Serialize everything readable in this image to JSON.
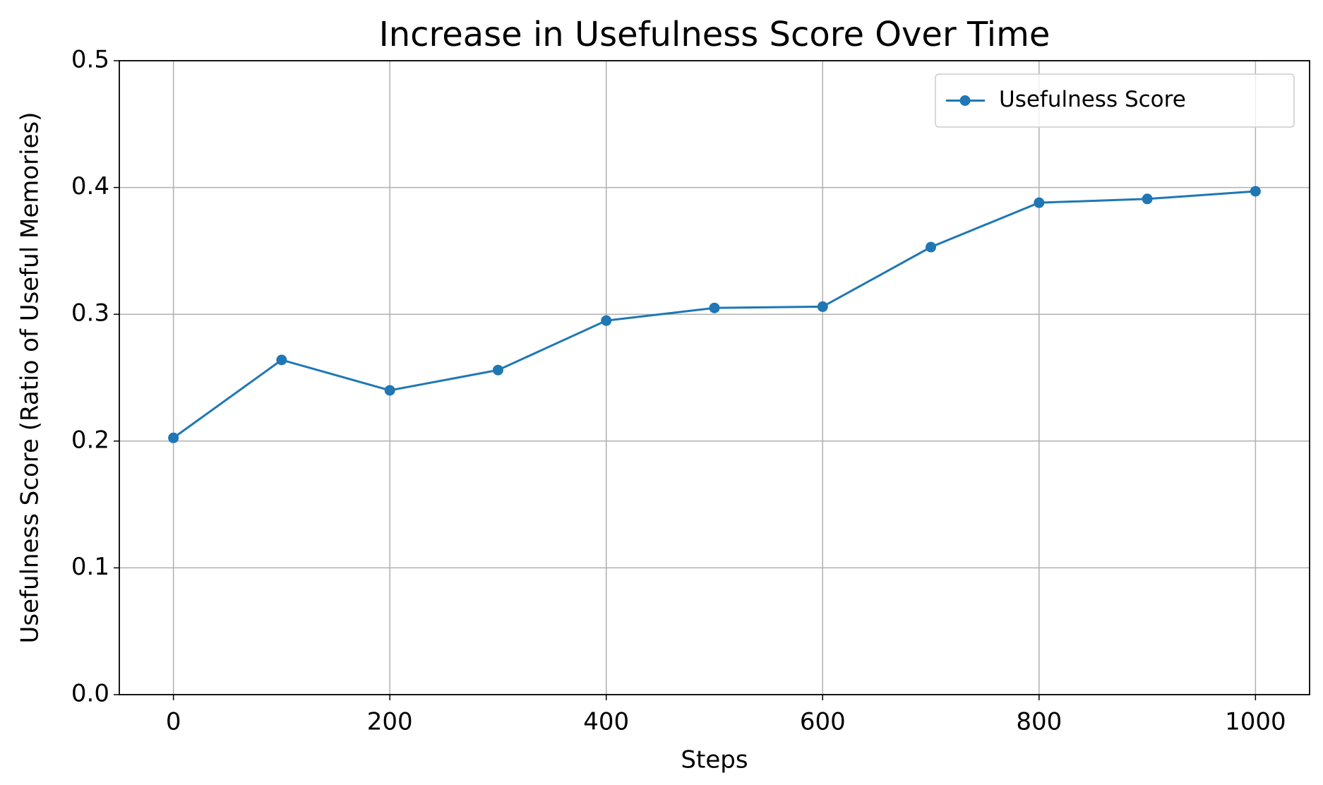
{
  "chart_data": {
    "type": "line",
    "title": "Increase in Usefulness Score Over Time",
    "xlabel": "Steps",
    "ylabel": "Usefulness Score (Ratio of Useful Memories)",
    "x": [
      0,
      100,
      200,
      300,
      400,
      500,
      600,
      700,
      800,
      900,
      1000
    ],
    "series": [
      {
        "name": "Usefulness Score",
        "color": "#1f77b4",
        "values": [
          0.2025,
          0.264,
          0.24,
          0.256,
          0.295,
          0.305,
          0.306,
          0.353,
          0.388,
          0.391,
          0.397
        ]
      }
    ],
    "xlim": [
      -50,
      1050
    ],
    "xticks": [
      0,
      200,
      400,
      600,
      800,
      1000
    ],
    "ylim": [
      0,
      0.5
    ],
    "yticks": [
      {
        "value": 0,
        "label": "0.0"
      },
      0.1,
      0.2,
      0.3,
      0.4,
      0.5
    ],
    "grid": true,
    "legend": "upper right",
    "marker": "circle"
  }
}
